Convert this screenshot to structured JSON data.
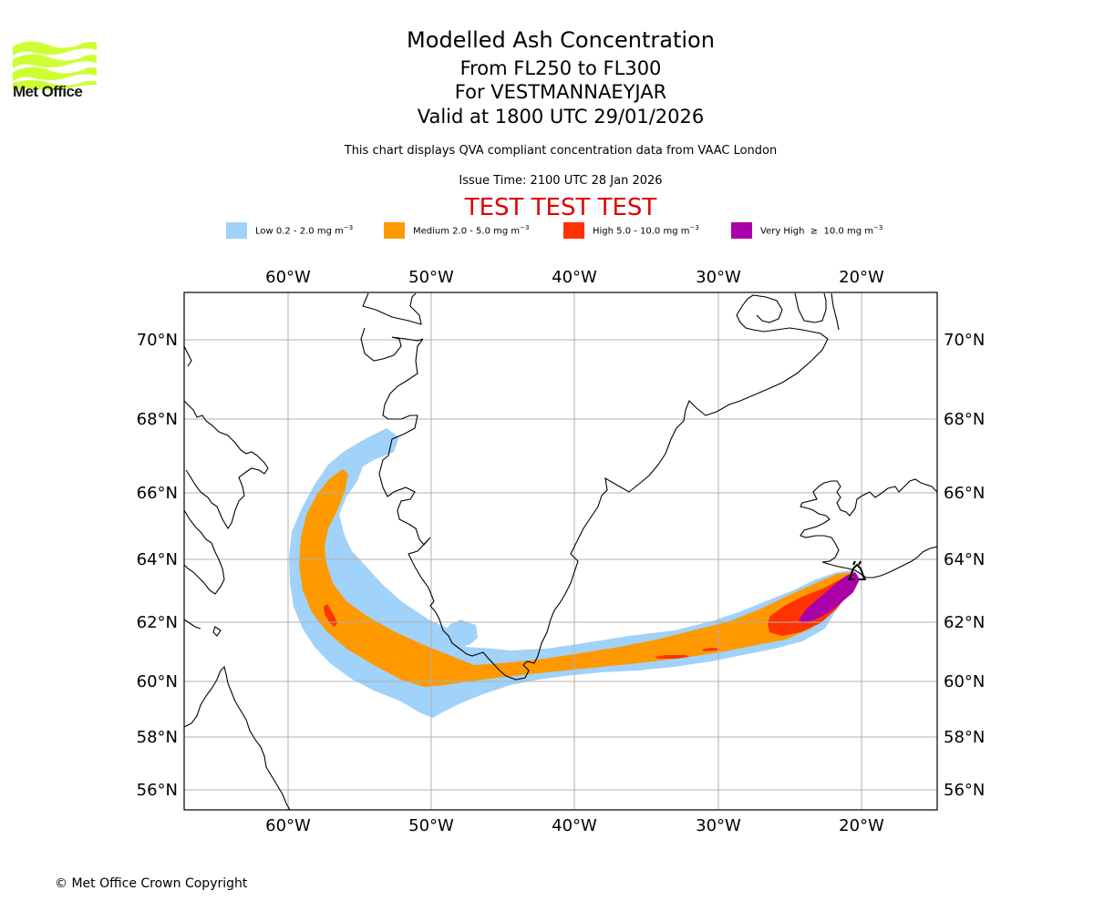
{
  "logo": {
    "text": "Met Office",
    "icon": "met-office-wave-logo",
    "color": "#ccff33"
  },
  "header": {
    "title": "Modelled Ash Concentration",
    "flight_levels": "From FL250 to FL300",
    "volcano": "For VESTMANNAEYJAR",
    "valid": "Valid at 1800 UTC 29/01/2026",
    "subtitle": "This chart displays QVA compliant concentration data from VAAC London",
    "issue_time": "Issue Time: 2100 UTC 28 Jan 2026",
    "test_banner": "TEST TEST TEST",
    "test_color": "#e00000"
  },
  "legend": [
    {
      "label": "Low 0.2 - 2.0 mg m",
      "sup": "−3",
      "color": "#a0d2fa"
    },
    {
      "label": "Medium 2.0 - 5.0 mg m",
      "sup": "−3",
      "color": "#ff9900"
    },
    {
      "label": "High 5.0 - 10.0 mg m",
      "sup": "−3",
      "color": "#ff3300"
    },
    {
      "label": "Very High  ≥  10.0 mg m",
      "sup": "−3",
      "color": "#aa00aa"
    }
  ],
  "map": {
    "lon_ticks": [
      "60°W",
      "50°W",
      "40°W",
      "30°W",
      "20°W"
    ],
    "lat_ticks": [
      "70°N",
      "68°N",
      "66°N",
      "64°N",
      "62°N",
      "60°N",
      "58°N",
      "56°N"
    ],
    "lon_range": [
      -67.3,
      -15
    ],
    "lat_range": [
      55.4,
      71.2
    ],
    "volcano_marker": {
      "name": "VESTMANNAEYJAR",
      "lon": -20.3,
      "lat": 63.4,
      "icon": "volcano-icon"
    },
    "gridline_color": "#b0b0b0",
    "coastline_color": "#000000"
  },
  "footer": {
    "copyright": "© Met Office Crown Copyright"
  }
}
